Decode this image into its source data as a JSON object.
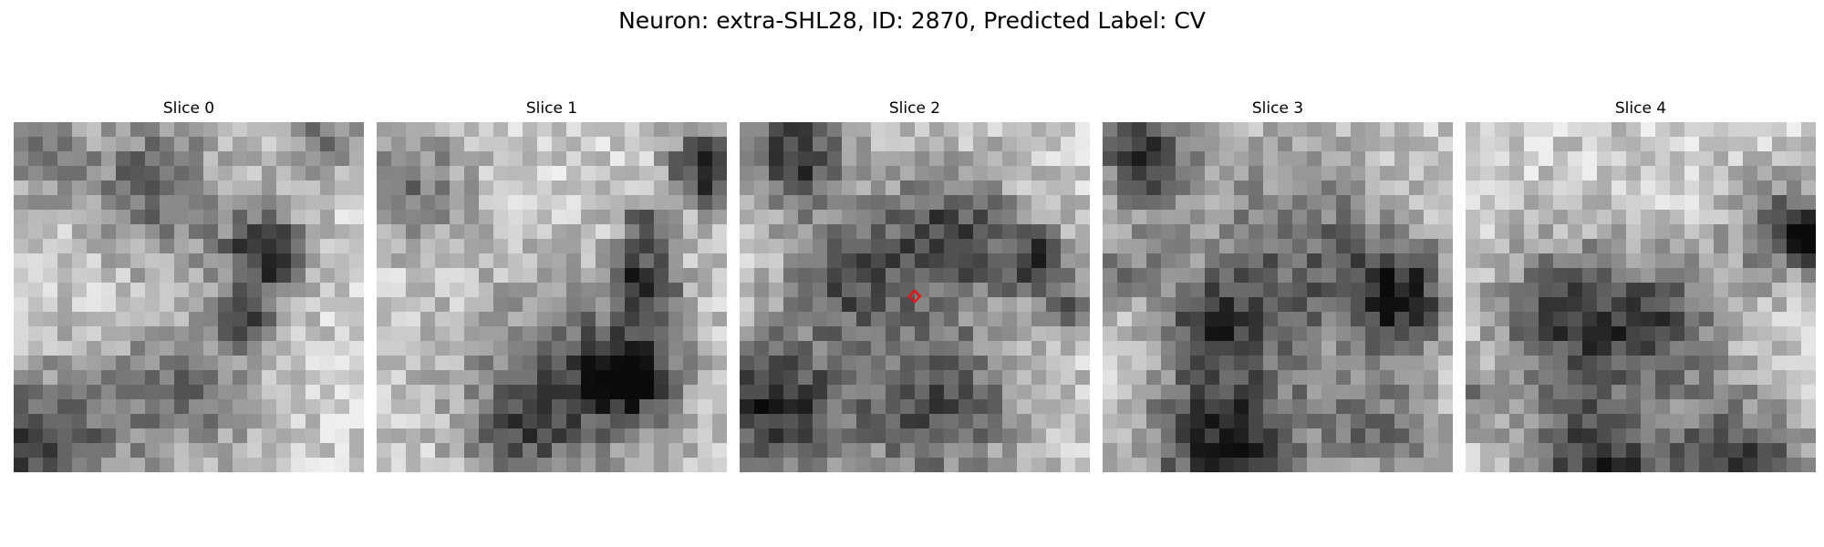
{
  "figure": {
    "title": "Neuron: extra-SHL28, ID: 2870, Predicted Label: CV"
  },
  "slices": [
    {
      "title": "Slice 0",
      "marker": false,
      "seed": 11,
      "blobs": [
        [
          0.4,
          0.18,
          0.14,
          0.55
        ],
        [
          0.72,
          0.38,
          0.09,
          0.85
        ],
        [
          0.66,
          0.58,
          0.05,
          0.55
        ],
        [
          0.5,
          0.76,
          0.16,
          0.45
        ],
        [
          0.08,
          0.93,
          0.15,
          0.75
        ],
        [
          0.88,
          0.05,
          0.08,
          0.45
        ],
        [
          0.07,
          0.1,
          0.09,
          0.4
        ]
      ]
    },
    {
      "title": "Slice 1",
      "marker": false,
      "seed": 23,
      "blobs": [
        [
          0.1,
          0.18,
          0.12,
          0.45
        ],
        [
          0.95,
          0.13,
          0.08,
          0.9
        ],
        [
          0.77,
          0.46,
          0.06,
          0.85
        ],
        [
          0.77,
          0.3,
          0.05,
          0.7
        ],
        [
          0.55,
          0.75,
          0.21,
          0.55
        ],
        [
          0.73,
          0.72,
          0.09,
          0.8
        ],
        [
          0.4,
          0.88,
          0.1,
          0.35
        ]
      ]
    },
    {
      "title": "Slice 2",
      "marker": true,
      "seed": 37,
      "blobs": [
        [
          0.16,
          0.1,
          0.1,
          0.85
        ],
        [
          0.6,
          0.32,
          0.14,
          0.7
        ],
        [
          0.3,
          0.44,
          0.12,
          0.6
        ],
        [
          0.85,
          0.4,
          0.07,
          0.7
        ],
        [
          0.08,
          0.8,
          0.14,
          0.85
        ],
        [
          0.55,
          0.8,
          0.18,
          0.65
        ],
        [
          0.95,
          0.55,
          0.05,
          0.55
        ]
      ]
    },
    {
      "title": "Slice 3",
      "marker": false,
      "seed": 53,
      "blobs": [
        [
          0.12,
          0.1,
          0.09,
          0.85
        ],
        [
          0.55,
          0.4,
          0.22,
          0.55
        ],
        [
          0.85,
          0.5,
          0.1,
          0.8
        ],
        [
          0.3,
          0.58,
          0.1,
          0.5
        ],
        [
          0.35,
          0.92,
          0.16,
          0.85
        ],
        [
          0.8,
          0.88,
          0.12,
          0.45
        ],
        [
          0.05,
          0.4,
          0.08,
          0.4
        ]
      ]
    },
    {
      "title": "Slice 4",
      "marker": false,
      "seed": 71,
      "blobs": [
        [
          0.3,
          0.56,
          0.15,
          0.7
        ],
        [
          0.58,
          0.58,
          0.13,
          0.55
        ],
        [
          0.9,
          0.3,
          0.1,
          0.6
        ],
        [
          0.99,
          0.33,
          0.05,
          0.9
        ],
        [
          0.38,
          0.98,
          0.14,
          0.8
        ],
        [
          0.78,
          0.98,
          0.14,
          0.7
        ],
        [
          0.03,
          0.8,
          0.06,
          0.4
        ]
      ]
    }
  ]
}
